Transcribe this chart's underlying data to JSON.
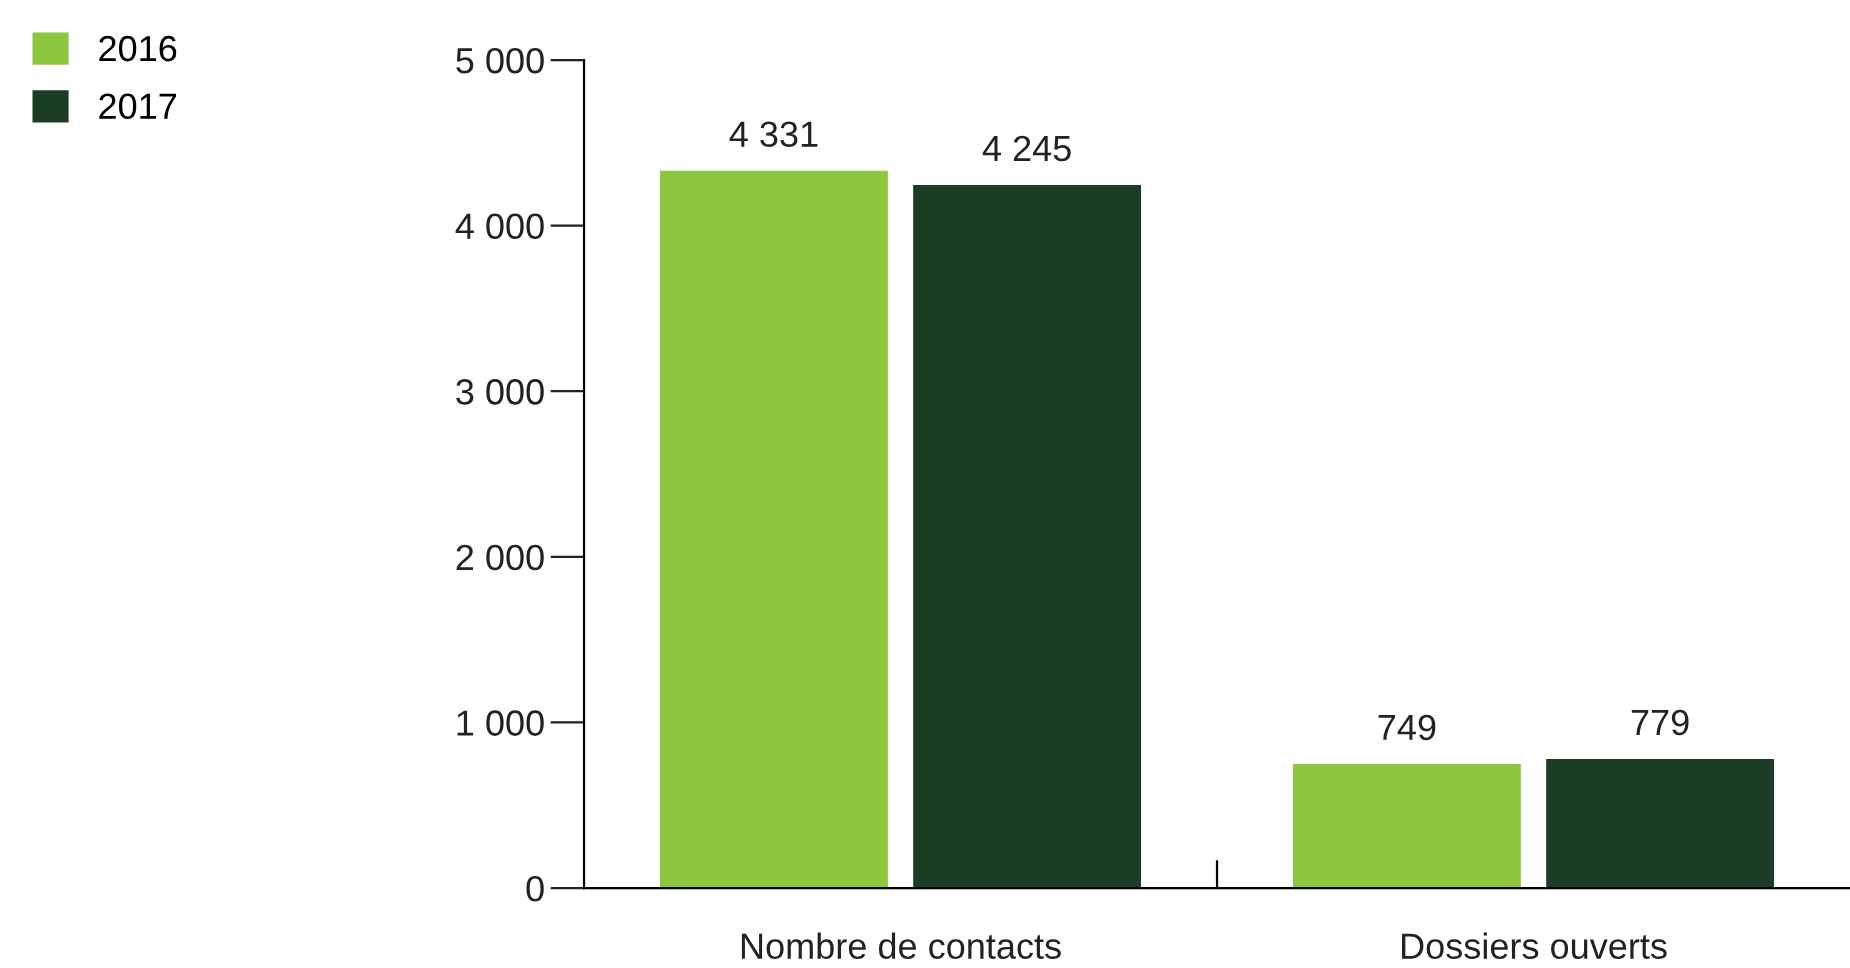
{
  "chart_data": {
    "type": "bar",
    "categories": [
      "Nombre de contacts",
      "Dossiers ouverts"
    ],
    "series": [
      {
        "name": "2016",
        "color": "#8dc63f",
        "values": [
          4331,
          749
        ],
        "value_labels": [
          "4 331",
          "749"
        ]
      },
      {
        "name": "2017",
        "color": "#1b3d25",
        "values": [
          4245,
          779
        ],
        "value_labels": [
          "4 245",
          "779"
        ]
      }
    ],
    "ylim": [
      0,
      5000
    ],
    "yticks": [
      0,
      {
        "value": 1000,
        "label": "1 000"
      },
      {
        "value": 2000,
        "label": "2 000"
      },
      {
        "value": 3000,
        "label": "3 000"
      },
      {
        "value": 4000,
        "label": "4 000"
      },
      {
        "value": 5000,
        "label": "5 000"
      }
    ],
    "grid": false,
    "legend": "top left"
  }
}
